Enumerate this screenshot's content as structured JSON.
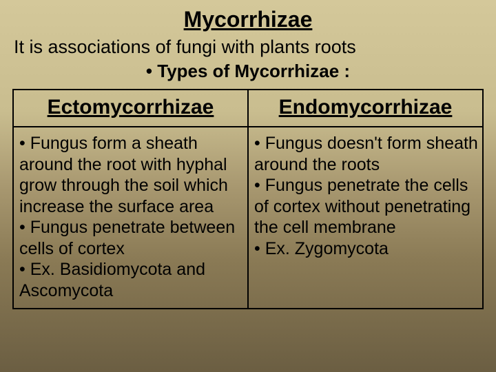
{
  "title": "Mycorrhizae",
  "subtitle": "It is associations of fungi with plants roots",
  "types_heading": "• Types of Mycorrhizae :",
  "table": {
    "columns": [
      {
        "header": "Ectomycorrhizae",
        "body": "• Fungus form a sheath around the root with hyphal grow through the soil which increase the surface area\n• Fungus penetrate between cells of cortex\n• Ex. Basidiomycota and Ascomycota"
      },
      {
        "header": "Endomycorrhizae",
        "body": "• Fungus doesn't form sheath around the roots\n• Fungus penetrate the cells of cortex without penetrating the cell membrane\n• Ex. Zygomycota"
      }
    ],
    "col_widths": [
      "50%",
      "50%"
    ]
  },
  "colors": {
    "text": "#000000",
    "border": "#000000",
    "bg_top": "#d4c89a",
    "bg_bottom": "#6b5e42"
  },
  "typography": {
    "title_fontsize": 32,
    "subtitle_fontsize": 27,
    "types_fontsize": 26,
    "column_header_fontsize": 30,
    "body_fontsize": 25
  }
}
